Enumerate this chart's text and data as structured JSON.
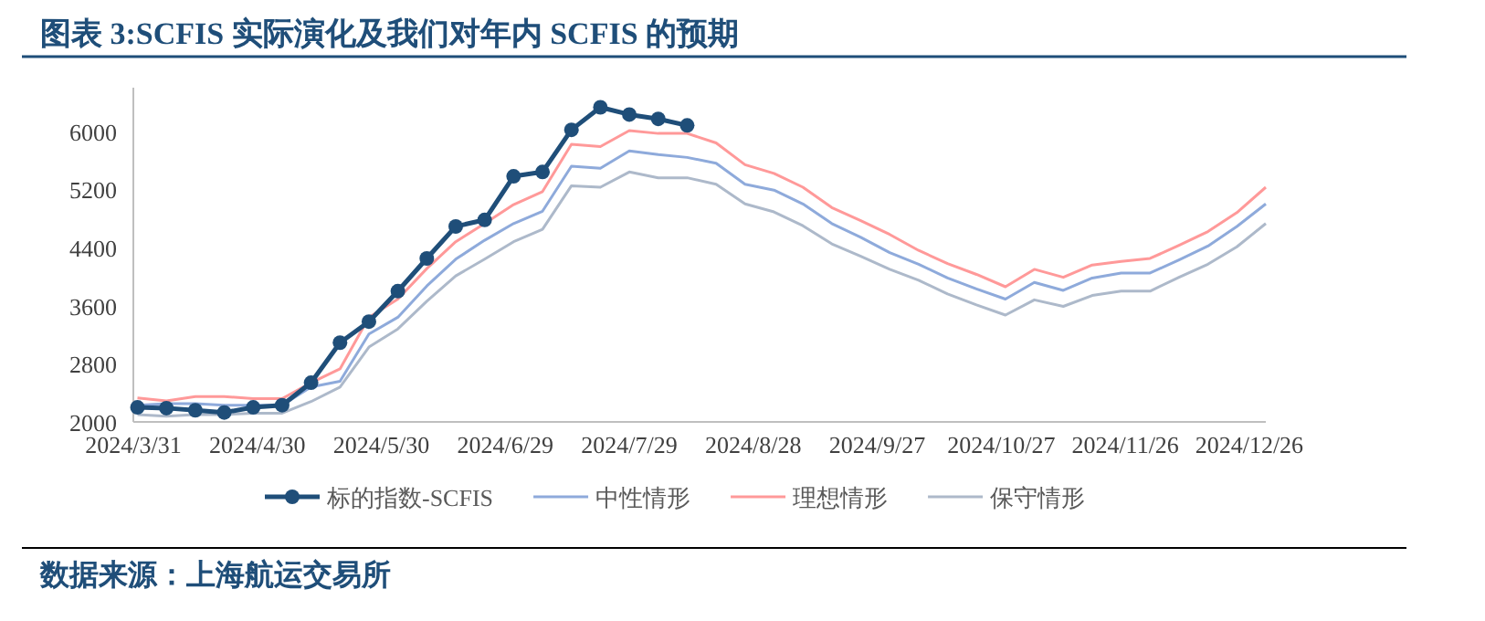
{
  "chart_data": {
    "type": "line",
    "title": "图表 3:SCFIS 实际演化及我们对年内 SCFIS 的预期",
    "annotations": [
      "数据来源：上海航运交易所"
    ],
    "x": [
      "2024-04-01",
      "2024-04-08",
      "2024-04-15",
      "2024-04-22",
      "2024-04-29",
      "2024-05-06",
      "2024-05-13",
      "2024-05-20",
      "2024-05-27",
      "2024-06-03",
      "2024-06-10",
      "2024-06-17",
      "2024-06-24",
      "2024-07-01",
      "2024-07-08",
      "2024-07-15",
      "2024-07-22",
      "2024-07-29",
      "2024-08-05",
      "2024-08-12",
      "2024-08-19",
      "2024-08-26",
      "2024-09-02",
      "2024-09-09",
      "2024-09-16",
      "2024-09-23",
      "2024-09-30",
      "2024-10-07",
      "2024-10-14",
      "2024-10-21",
      "2024-10-28",
      "2024-11-04",
      "2024-11-11",
      "2024-11-18",
      "2024-11-25",
      "2024-12-02",
      "2024-12-09",
      "2024-12-16",
      "2024-12-23",
      "2024-12-30"
    ],
    "series": [
      {
        "name": "标的指数-SCFIS",
        "color": "#1f4e79",
        "marker": "circle",
        "values": [
          2200,
          2190,
          2160,
          2130,
          2200,
          2230,
          2540,
          3090,
          3380,
          3800,
          4250,
          4690,
          4780,
          5380,
          5440,
          6020,
          6330,
          6230,
          6170,
          6080,
          null,
          null,
          null,
          null,
          null,
          null,
          null,
          null,
          null,
          null,
          null,
          null,
          null,
          null,
          null,
          null,
          null,
          null,
          null,
          null
        ]
      },
      {
        "name": "中性情形",
        "color": "#8eaadb",
        "values": [
          2230,
          2250,
          2250,
          2230,
          2230,
          2230,
          2480,
          2560,
          3210,
          3440,
          3870,
          4240,
          4500,
          4730,
          4900,
          5520,
          5490,
          5730,
          5680,
          5640,
          5560,
          5270,
          5190,
          5000,
          4730,
          4540,
          4330,
          4170,
          3980,
          3830,
          3690,
          3920,
          3810,
          3980,
          4050,
          4050,
          4230,
          4420,
          4690,
          5000
        ]
      },
      {
        "name": "理想情形",
        "color": "#ff9999",
        "values": [
          2330,
          2290,
          2350,
          2350,
          2320,
          2320,
          2540,
          2730,
          3440,
          3690,
          4110,
          4480,
          4730,
          4990,
          5170,
          5820,
          5790,
          6010,
          5970,
          5970,
          5840,
          5540,
          5420,
          5230,
          4950,
          4770,
          4580,
          4360,
          4180,
          4030,
          3860,
          4100,
          3990,
          4160,
          4210,
          4250,
          4430,
          4620,
          4880,
          5230
        ]
      },
      {
        "name": "保守情形",
        "color": "#adb9ca",
        "values": [
          2100,
          2080,
          2100,
          2100,
          2120,
          2120,
          2280,
          2480,
          3030,
          3280,
          3660,
          4010,
          4240,
          4480,
          4650,
          5250,
          5230,
          5440,
          5360,
          5360,
          5270,
          5000,
          4890,
          4700,
          4450,
          4280,
          4100,
          3950,
          3760,
          3610,
          3470,
          3680,
          3590,
          3740,
          3800,
          3800,
          3990,
          4170,
          4410,
          4730
        ]
      }
    ],
    "xlim": [
      "2024-03-31",
      "2024-12-30"
    ],
    "xticks": [
      {
        "value": "2024-03-31",
        "label": "2024/3/31"
      },
      {
        "value": "2024-04-30",
        "label": "2024/4/30"
      },
      {
        "value": "2024-05-30",
        "label": "2024/5/30"
      },
      {
        "value": "2024-06-29",
        "label": "2024/6/29"
      },
      {
        "value": "2024-07-29",
        "label": "2024/7/29"
      },
      {
        "value": "2024-08-28",
        "label": "2024/8/28"
      },
      {
        "value": "2024-09-27",
        "label": "2024/9/27"
      },
      {
        "value": "2024-10-27",
        "label": "2024/10/27"
      },
      {
        "value": "2024-11-26",
        "label": "2024/11/26"
      },
      {
        "value": "2024-12-26",
        "label": "2024/12/26"
      }
    ],
    "ylim": [
      2000,
      6600
    ],
    "yticks": [
      2000,
      2800,
      3600,
      4400,
      5200,
      6000
    ],
    "grid": false,
    "legend": "bottom"
  }
}
